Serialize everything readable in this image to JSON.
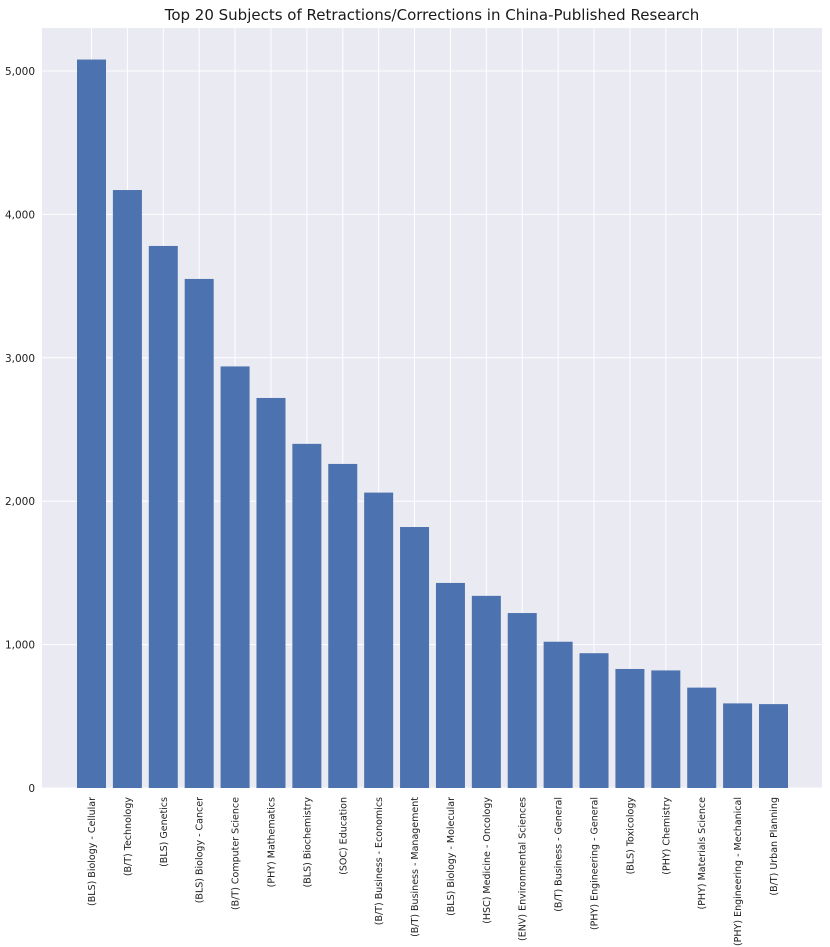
{
  "colors": {
    "background": "#ffffff",
    "plot_background": "#eaeaf2",
    "grid": "#ffffff",
    "bar": "#4c72b0",
    "text": "#222222"
  },
  "chart_data": {
    "type": "bar",
    "title": "Top 20 Subjects of Retractions/Corrections in China-Published Research",
    "xlabel": "",
    "ylabel": "",
    "ylim": [
      0,
      5300
    ],
    "yticks": [
      0,
      1000,
      2000,
      3000,
      4000,
      5000
    ],
    "ytick_labels": [
      "0",
      "1,000",
      "2,000",
      "3,000",
      "4,000",
      "5,000"
    ],
    "grid": true,
    "categories": [
      "(BLS) Biology - Cellular",
      "(B/T) Technology",
      "(BLS) Genetics",
      "(BLS) Biology - Cancer",
      "(B/T) Computer Science",
      "(PHY) Mathematics",
      "(BLS) Biochemistry",
      "(SOC) Education",
      "(B/T) Business - Economics",
      "(B/T) Business - Management",
      "(BLS) Biology - Molecular",
      "(HSC) Medicine - Oncology",
      "(ENV) Environmental Sciences",
      "(B/T) Business - General",
      "(PHY) Engineering - General",
      "(BLS) Toxicology",
      "(PHY) Chemistry",
      "(PHY) Materials Science",
      "(PHY) Engineering - Mechanical",
      "(B/T) Urban Planning"
    ],
    "values": [
      5080,
      4170,
      3780,
      3550,
      2940,
      2720,
      2400,
      2260,
      2060,
      1820,
      1430,
      1340,
      1220,
      1020,
      940,
      830,
      820,
      700,
      590,
      585
    ]
  }
}
